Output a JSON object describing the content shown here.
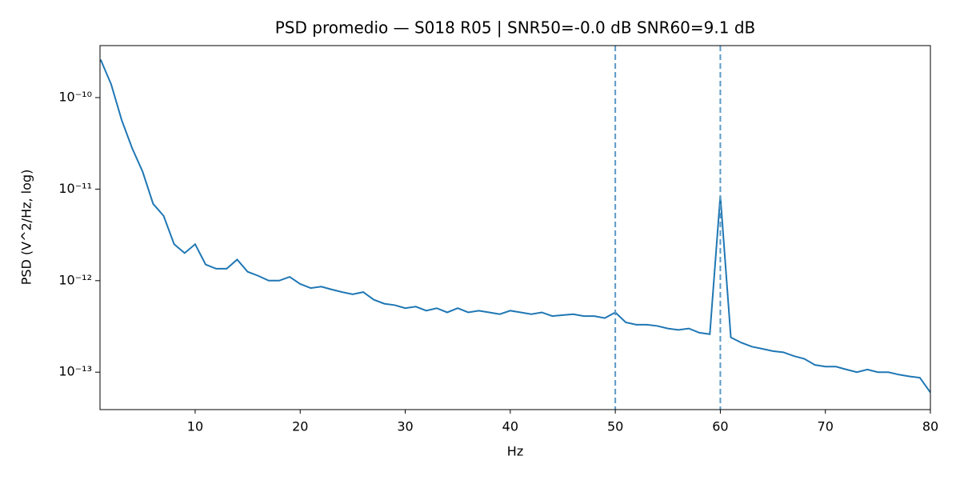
{
  "chart_data": {
    "type": "line",
    "title": "PSD promedio — S018 R05 | SNR50=-0.0 dB  SNR60=9.1 dB",
    "x_label": "Hz",
    "y_label": "PSD (V^2/Hz, log)",
    "yscale": "log",
    "xlim": [
      0.94,
      80
    ],
    "ylim": [
      3.9e-14,
      3.7e-10
    ],
    "xticks": [
      10,
      20,
      30,
      40,
      50,
      60,
      70,
      80
    ],
    "yticks": [
      {
        "value": 1e-13,
        "label": "10⁻¹³"
      },
      {
        "value": 1e-12,
        "label": "10⁻¹²"
      },
      {
        "value": 1e-11,
        "label": "10⁻¹¹"
      },
      {
        "value": 1e-10,
        "label": "10⁻¹⁰"
      }
    ],
    "vlines": [
      50,
      60
    ],
    "vline_color": "#5b9ac6",
    "x": [
      1,
      2,
      3,
      4,
      5,
      6,
      7,
      8,
      9,
      10,
      11,
      12,
      13,
      14,
      15,
      16,
      17,
      18,
      19,
      20,
      21,
      22,
      23,
      24,
      25,
      26,
      27,
      28,
      29,
      30,
      31,
      32,
      33,
      34,
      35,
      36,
      37,
      38,
      39,
      40,
      41,
      42,
      43,
      44,
      45,
      46,
      47,
      48,
      49,
      50,
      51,
      52,
      53,
      54,
      55,
      56,
      57,
      58,
      59,
      60,
      61,
      62,
      63,
      64,
      65,
      66,
      67,
      68,
      69,
      70,
      71,
      72,
      73,
      74,
      75,
      76,
      77,
      78,
      79,
      80
    ],
    "series": [
      {
        "color": "#1f77b4",
        "values": [
          2.6e-10,
          1.4e-10,
          5.7e-11,
          2.8e-11,
          1.55e-11,
          6.9e-12,
          5.1e-12,
          2.5e-12,
          2e-12,
          2.5e-12,
          1.5e-12,
          1.35e-12,
          1.35e-12,
          1.7e-12,
          1.25e-12,
          1.13e-12,
          1e-12,
          1e-12,
          1.1e-12,
          9.2e-13,
          8.3e-13,
          8.6e-13,
          8e-13,
          7.5e-13,
          7.1e-13,
          7.5e-13,
          6.2e-13,
          5.6e-13,
          5.4e-13,
          5e-13,
          5.2e-13,
          4.7e-13,
          5e-13,
          4.5e-13,
          5e-13,
          4.5e-13,
          4.7e-13,
          4.5e-13,
          4.3e-13,
          4.7e-13,
          4.5e-13,
          4.3e-13,
          4.5e-13,
          4.1e-13,
          4.2e-13,
          4.3e-13,
          4.1e-13,
          4.1e-13,
          3.9e-13,
          4.5e-13,
          3.5e-13,
          3.3e-13,
          3.3e-13,
          3.2e-13,
          3e-13,
          2.9e-13,
          3e-13,
          2.7e-13,
          2.6e-13,
          8.5e-12,
          2.4e-13,
          2.1e-13,
          1.9e-13,
          1.8e-13,
          1.7e-13,
          1.65e-13,
          1.5e-13,
          1.4e-13,
          1.2e-13,
          1.15e-13,
          1.15e-13,
          1.07e-13,
          1e-13,
          1.07e-13,
          1e-13,
          1e-13,
          9.4e-14,
          9e-14,
          8.7e-14,
          6e-14
        ]
      }
    ]
  }
}
